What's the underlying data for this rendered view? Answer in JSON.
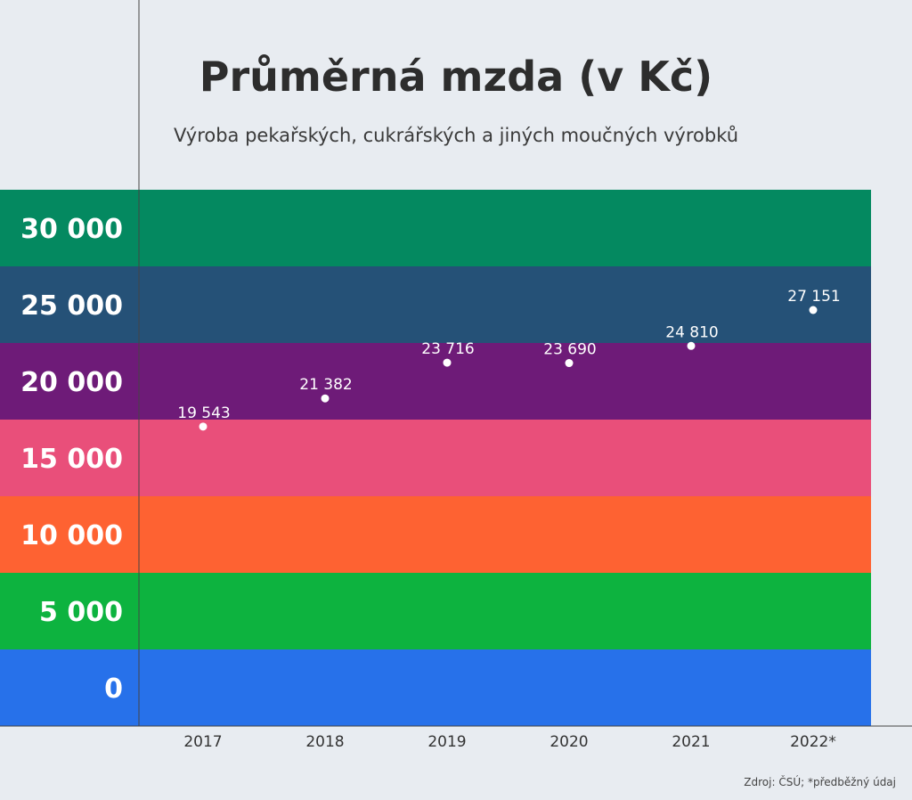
{
  "chart_data": {
    "type": "scatter",
    "title": "Průměrná mzda (v Kč)",
    "subtitle": "Výroba pekařských, cukrářských a jiných moučných výrobků",
    "x": [
      "2017",
      "2018",
      "2019",
      "2020",
      "2021",
      "2022*"
    ],
    "y": [
      19543,
      21382,
      23716,
      23690,
      24810,
      27151
    ],
    "data_labels": [
      "19 543",
      "21 382",
      "23 716",
      "23 690",
      "24 810",
      "27 151"
    ],
    "ylim": [
      0,
      35000
    ],
    "yticks": [
      0,
      5000,
      10000,
      15000,
      20000,
      25000,
      30000
    ],
    "ytick_labels": [
      "0",
      "5 000",
      "10 000",
      "15 000",
      "20 000",
      "25 000",
      "30 000"
    ],
    "band_colors": [
      "#2771ea",
      "#0db33f",
      "#fe6232",
      "#e94f7a",
      "#6e1b78",
      "#255177",
      "#048960"
    ],
    "point_color": "#ffffff",
    "source": "Zdroj: ČSÚ; *předběžný údaj"
  }
}
